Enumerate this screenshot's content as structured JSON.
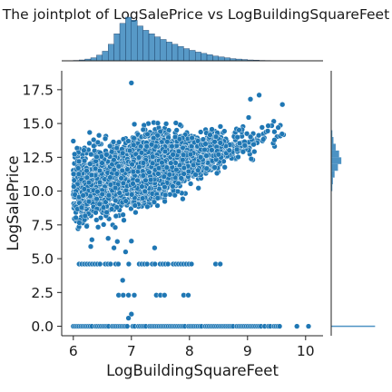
{
  "chart_data": {
    "type": "scatter",
    "title": "The jointplot of LogSalePrice vs LogBuildingSquareFeet",
    "xlabel": "LogBuildingSquareFeet",
    "ylabel": "LogSalePrice",
    "xlim": [
      5.8,
      10.3
    ],
    "ylim": [
      -0.7,
      18.9
    ],
    "x_ticks": [
      "6",
      "7",
      "8",
      "9",
      "10"
    ],
    "x_tick_values": [
      6,
      7,
      8,
      9,
      10
    ],
    "y_ticks": [
      "0.0",
      "2.5",
      "5.0",
      "7.5",
      "10.0",
      "12.5",
      "15.0",
      "17.5"
    ],
    "y_tick_values": [
      0,
      2.5,
      5,
      7.5,
      10,
      12.5,
      15,
      17.5
    ],
    "grid": false,
    "point_color": "#1f77b4",
    "marginal_x_histogram": {
      "bin_centers": [
        6.05,
        6.15,
        6.25,
        6.35,
        6.45,
        6.55,
        6.65,
        6.75,
        6.85,
        6.95,
        7.05,
        7.15,
        7.25,
        7.35,
        7.45,
        7.55,
        7.65,
        7.75,
        7.85,
        7.95,
        8.05,
        8.15,
        8.25,
        8.35,
        8.45,
        8.55,
        8.65,
        8.75,
        8.85,
        8.95,
        9.05,
        9.15,
        9.25,
        9.35,
        9.45,
        9.55,
        9.65
      ],
      "relative_counts": [
        0.01,
        0.02,
        0.04,
        0.07,
        0.13,
        0.22,
        0.38,
        0.62,
        0.86,
        1.0,
        0.93,
        0.8,
        0.7,
        0.62,
        0.55,
        0.49,
        0.43,
        0.38,
        0.33,
        0.28,
        0.24,
        0.2,
        0.17,
        0.14,
        0.11,
        0.09,
        0.07,
        0.05,
        0.04,
        0.03,
        0.02,
        0.015,
        0.01,
        0.008,
        0.005,
        0.003,
        0.002
      ]
    },
    "marginal_y_histogram": {
      "bin_centers": [
        0.0,
        10.25,
        10.75,
        11.25,
        11.75,
        12.25,
        12.75,
        13.25,
        13.75,
        14.25
      ],
      "relative_counts": [
        0.78,
        0.02,
        0.03,
        0.06,
        0.12,
        0.18,
        0.14,
        0.08,
        0.04,
        0.02
      ]
    }
  }
}
